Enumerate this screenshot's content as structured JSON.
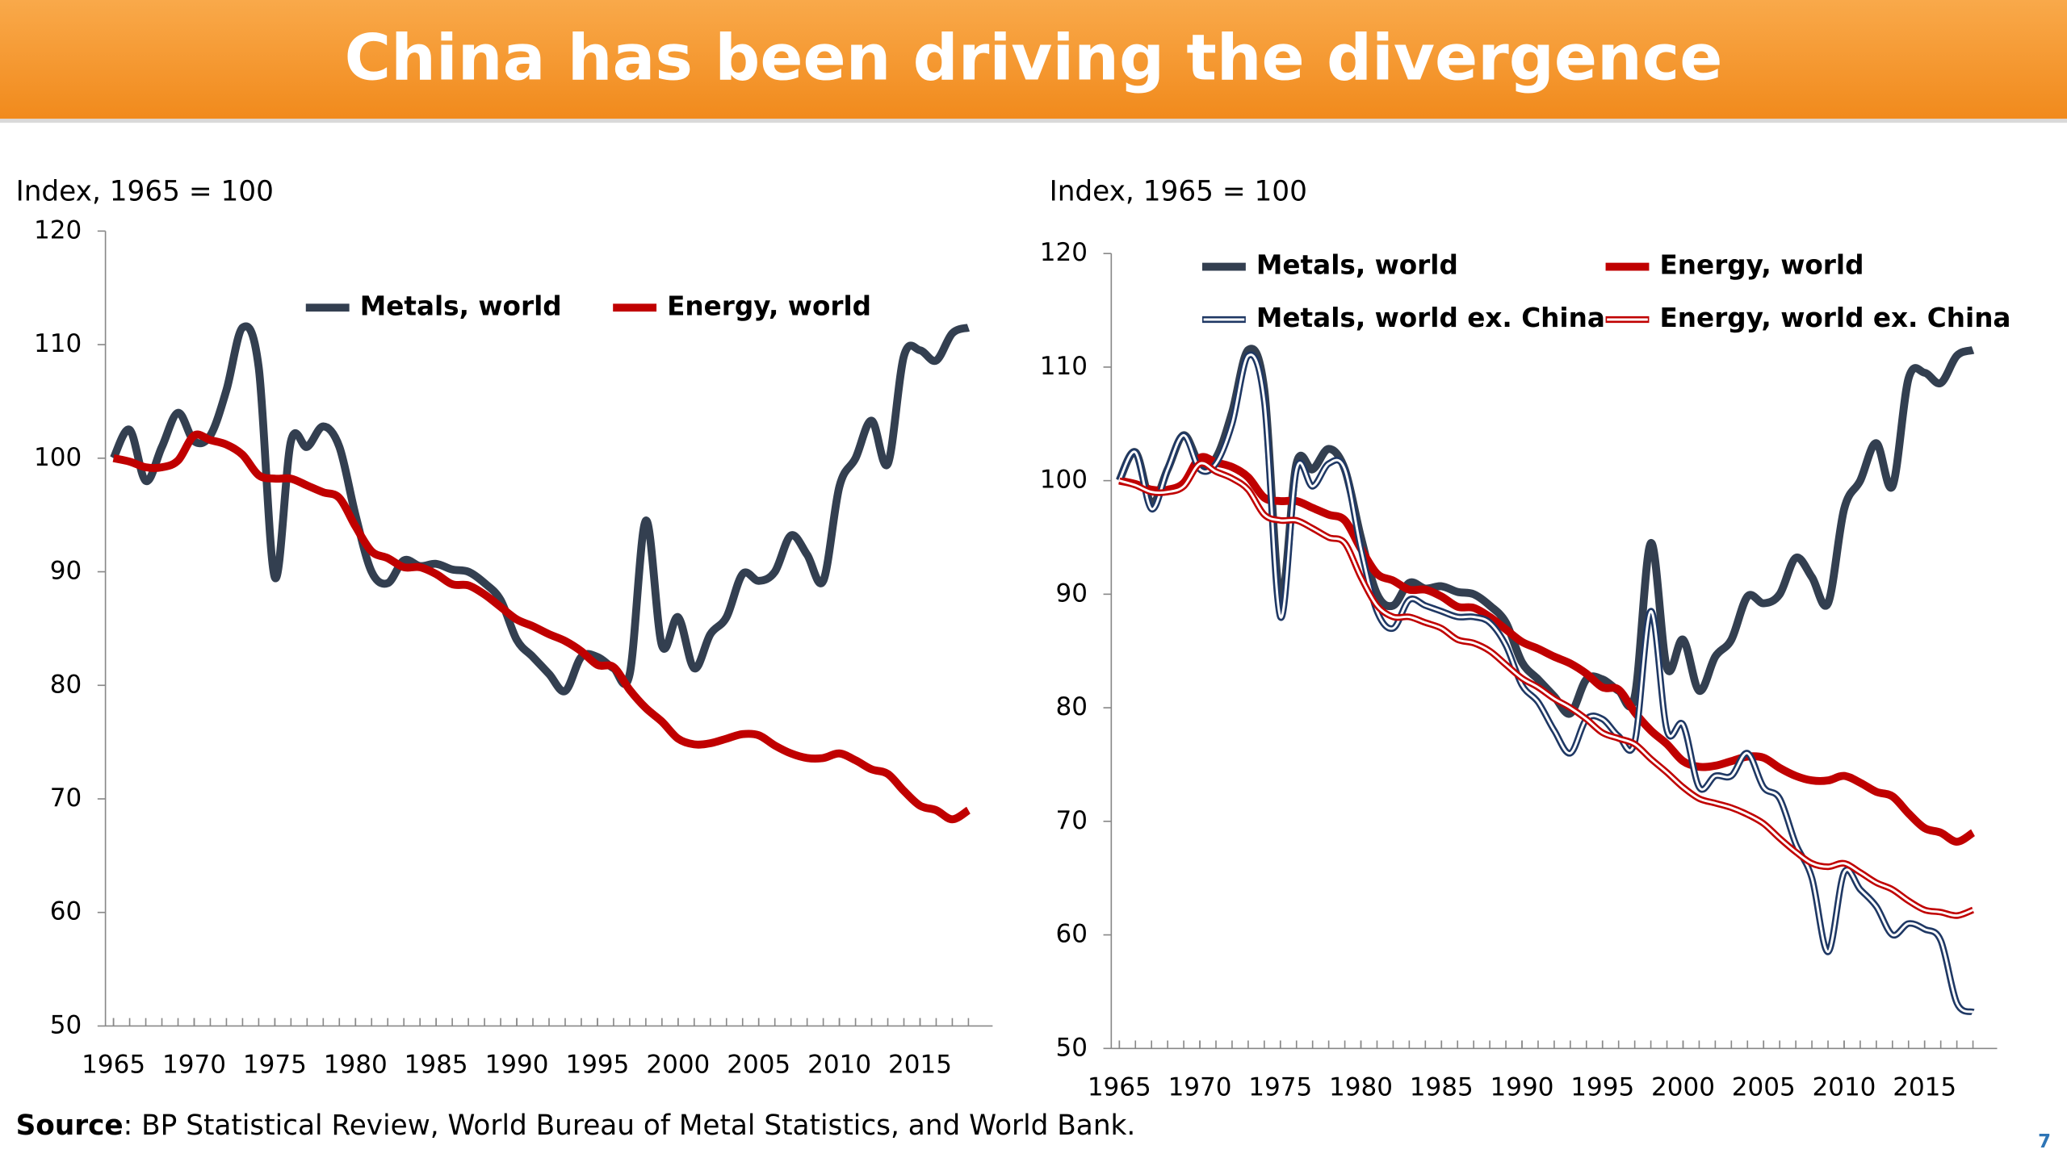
{
  "title": "China has been driving the divergence",
  "source_label": "Source",
  "source": ": BP Statistical Review, World Bureau of Metal Statistics, and World Bank.",
  "page_number": "7",
  "chart_data": [
    {
      "type": "line",
      "ylabel": "Index, 1965 = 100",
      "legend": "top",
      "x": [
        1965,
        1966,
        1967,
        1968,
        1969,
        1970,
        1971,
        1972,
        1973,
        1974,
        1975,
        1976,
        1977,
        1978,
        1979,
        1980,
        1981,
        1982,
        1983,
        1984,
        1985,
        1986,
        1987,
        1988,
        1989,
        1990,
        1991,
        1992,
        1993,
        1994,
        1995,
        1996,
        1997,
        1998,
        1999,
        2000,
        2001,
        2002,
        2003,
        2004,
        2005,
        2006,
        2007,
        2008,
        2009,
        2010,
        2011,
        2012,
        2013,
        2014,
        2015,
        2016,
        2017,
        2018
      ],
      "xlim": [
        1964.5,
        2019.5
      ],
      "xticks": [
        1965,
        1970,
        1975,
        1980,
        1985,
        1990,
        1995,
        2000,
        2005,
        2010,
        2015
      ],
      "ylim": [
        50,
        120
      ],
      "yticks": [
        50,
        60,
        70,
        80,
        90,
        100,
        110,
        120
      ],
      "series": [
        {
          "name": "Metals, world",
          "color": "#333f50",
          "line_style": "solid",
          "values": [
            100,
            102.5,
            98,
            101,
            104,
            101.5,
            102,
            106,
            111.5,
            108,
            89.5,
            101.5,
            101,
            102.8,
            101,
            95,
            90,
            89,
            91,
            90.5,
            90.7,
            90.2,
            90,
            89,
            87.5,
            84,
            82.5,
            81,
            79.5,
            82.5,
            82.5,
            81.5,
            81,
            94.5,
            83.5,
            86,
            81.5,
            84.5,
            86,
            89.8,
            89.2,
            90,
            93.2,
            91.5,
            89.2,
            97.5,
            100,
            103.3,
            99.5,
            109,
            109.5,
            108.6,
            111,
            111.5
          ]
        },
        {
          "name": "Energy, world",
          "color": "#c00000",
          "line_style": "solid",
          "values": [
            100,
            99.7,
            99.2,
            99.2,
            99.8,
            102,
            101.6,
            101.2,
            100.3,
            98.5,
            98.2,
            98.2,
            97.6,
            97,
            96.5,
            94,
            91.8,
            91.2,
            90.4,
            90.4,
            89.8,
            88.9,
            88.8,
            88,
            86.9,
            85.8,
            85.2,
            84.5,
            83.9,
            83,
            81.8,
            81.6,
            79.6,
            78,
            76.8,
            75.3,
            74.8,
            74.9,
            75.3,
            75.7,
            75.6,
            74.7,
            74,
            73.6,
            73.6,
            74,
            73.4,
            72.6,
            72.2,
            70.7,
            69.4,
            69,
            68.2,
            69
          ]
        }
      ]
    },
    {
      "type": "line",
      "ylabel": "Index, 1965 = 100",
      "legend": "top",
      "x": [
        1965,
        1966,
        1967,
        1968,
        1969,
        1970,
        1971,
        1972,
        1973,
        1974,
        1975,
        1976,
        1977,
        1978,
        1979,
        1980,
        1981,
        1982,
        1983,
        1984,
        1985,
        1986,
        1987,
        1988,
        1989,
        1990,
        1991,
        1992,
        1993,
        1994,
        1995,
        1996,
        1997,
        1998,
        1999,
        2000,
        2001,
        2002,
        2003,
        2004,
        2005,
        2006,
        2007,
        2008,
        2009,
        2010,
        2011,
        2012,
        2013,
        2014,
        2015,
        2016,
        2017,
        2018
      ],
      "xlim": [
        1964.5,
        2019.5
      ],
      "xticks": [
        1965,
        1970,
        1975,
        1980,
        1985,
        1990,
        1995,
        2000,
        2005,
        2010,
        2015
      ],
      "ylim": [
        50,
        120
      ],
      "yticks": [
        50,
        60,
        70,
        80,
        90,
        100,
        110,
        120
      ],
      "series": [
        {
          "name": "Metals, world",
          "color": "#333f50",
          "line_style": "solid",
          "values": [
            100,
            102.5,
            98,
            101,
            104,
            101.5,
            102,
            106,
            111.5,
            108,
            89.5,
            101.5,
            101,
            102.8,
            101,
            95,
            90,
            89,
            91,
            90.5,
            90.7,
            90.2,
            90,
            89,
            87.5,
            84,
            82.5,
            81,
            79.5,
            82.5,
            82.5,
            81.5,
            81,
            94.5,
            83.5,
            86,
            81.5,
            84.5,
            86,
            89.8,
            89.2,
            90,
            93.2,
            91.5,
            89.2,
            97.5,
            100,
            103.3,
            99.5,
            109,
            109.5,
            108.6,
            111,
            111.5
          ]
        },
        {
          "name": "Energy, world",
          "color": "#c00000",
          "line_style": "solid",
          "values": [
            100,
            99.7,
            99.2,
            99.2,
            99.8,
            102,
            101.6,
            101.2,
            100.3,
            98.5,
            98.2,
            98.2,
            97.6,
            97,
            96.5,
            94,
            91.8,
            91.2,
            90.4,
            90.4,
            89.8,
            88.9,
            88.8,
            88,
            86.9,
            85.8,
            85.2,
            84.5,
            83.9,
            83,
            81.8,
            81.6,
            79.6,
            78,
            76.8,
            75.3,
            74.8,
            74.9,
            75.3,
            75.7,
            75.6,
            74.7,
            74,
            73.6,
            73.6,
            74,
            73.4,
            72.6,
            72.2,
            70.7,
            69.4,
            69,
            68.2,
            69
          ]
        },
        {
          "name": "Metals, world ex. China",
          "color": "#1f3864",
          "line_style": "double",
          "values": [
            100,
            102.5,
            97.5,
            101,
            104,
            101,
            101.5,
            105,
            111,
            107,
            88,
            101,
            99.5,
            101.5,
            101,
            94,
            88.5,
            87,
            89.5,
            89,
            88.5,
            88,
            88,
            87.5,
            85.5,
            82,
            80.5,
            78,
            76,
            79,
            79,
            77.5,
            77,
            88.5,
            78,
            78.5,
            73,
            74,
            74,
            76,
            73,
            72,
            68,
            65,
            58.5,
            65.5,
            64,
            62.5,
            60,
            61,
            60.5,
            59.5,
            54,
            53.2
          ]
        },
        {
          "name": "Energy, world ex. China",
          "color": "#c00000",
          "line_style": "double",
          "values": [
            100,
            99.6,
            99,
            99,
            99.5,
            101.5,
            100.8,
            100.2,
            99.2,
            97,
            96.5,
            96.5,
            95.8,
            95,
            94.5,
            91.5,
            89,
            88,
            88,
            87.5,
            87,
            86,
            85.7,
            85,
            83.8,
            82.6,
            81.8,
            80.8,
            80,
            79,
            77.8,
            77.3,
            76.8,
            75.5,
            74.3,
            73,
            72,
            71.6,
            71.2,
            70.6,
            69.8,
            68.5,
            67.3,
            66.3,
            66,
            66.3,
            65.5,
            64.6,
            64,
            63,
            62.2,
            62,
            61.7,
            62.2
          ]
        }
      ]
    }
  ]
}
